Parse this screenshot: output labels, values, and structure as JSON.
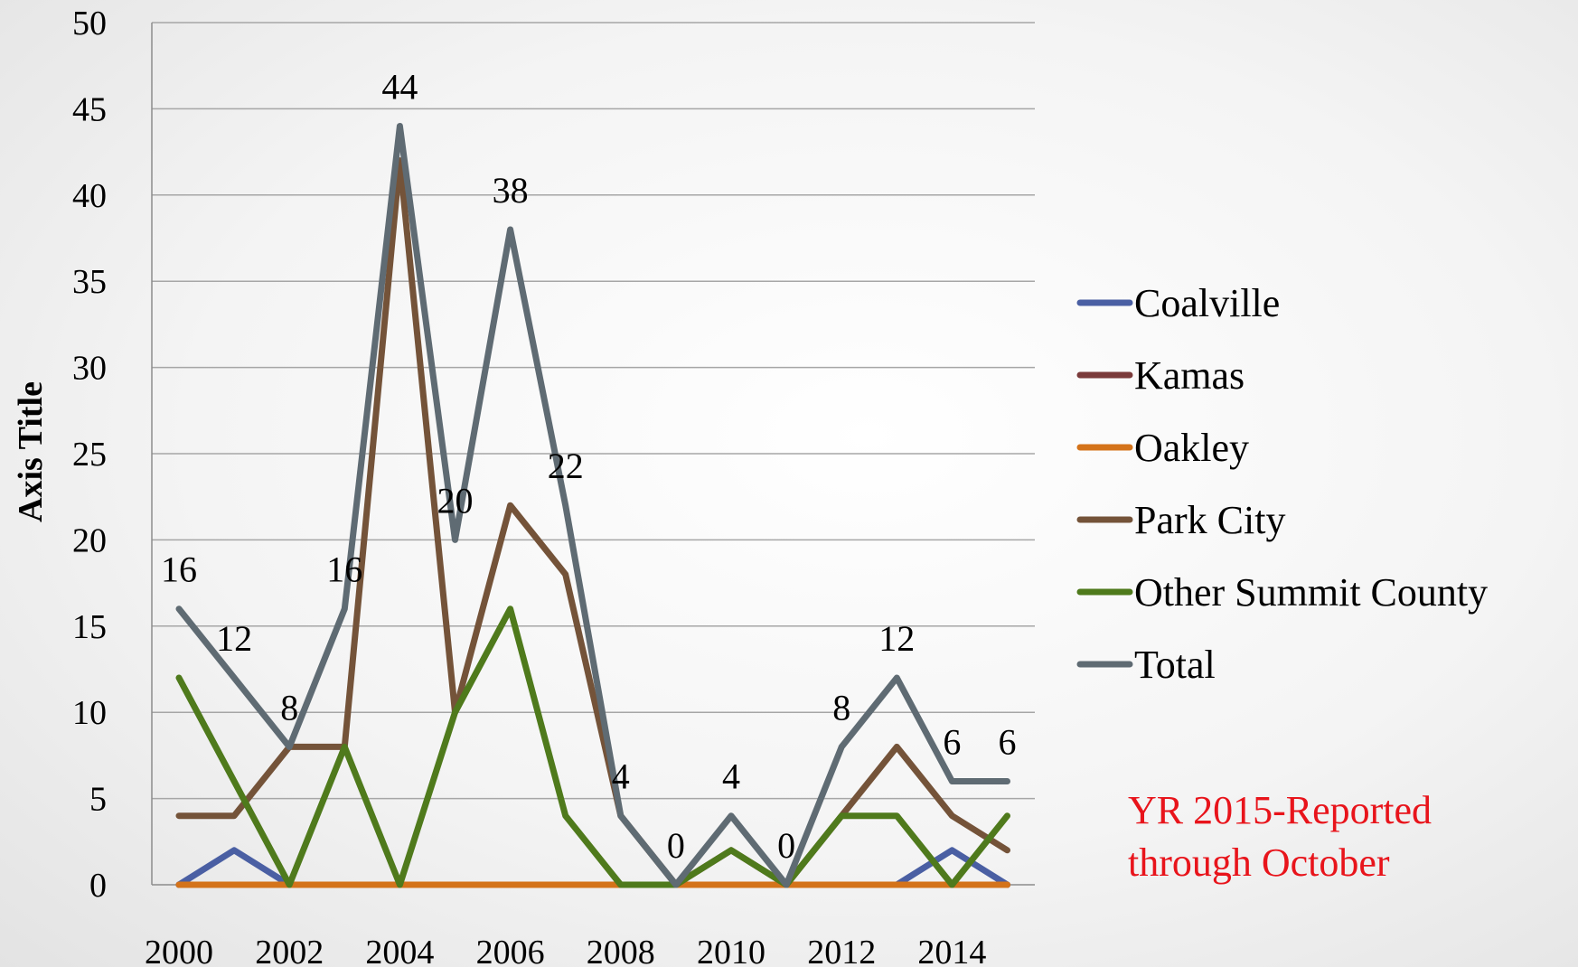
{
  "chart_data": {
    "type": "line",
    "title": "",
    "xlabel": "",
    "ylabel": "Axis Title",
    "ylim": [
      0,
      50
    ],
    "y_ticks": [
      0,
      5,
      10,
      15,
      20,
      25,
      30,
      35,
      40,
      45,
      50
    ],
    "x": [
      2000,
      2001,
      2002,
      2003,
      2004,
      2005,
      2006,
      2007,
      2008,
      2009,
      2010,
      2011,
      2012,
      2013,
      2014,
      2015
    ],
    "x_tick_labels": [
      "2000",
      "2002",
      "2004",
      "2006",
      "2008",
      "2010",
      "2012",
      "2014"
    ],
    "grid": "horizontal",
    "legend_position": "right",
    "series": [
      {
        "name": "Coalville",
        "color": "#4a5fa3",
        "values": [
          0,
          2,
          0,
          0,
          0,
          0,
          0,
          0,
          0,
          0,
          0,
          0,
          0,
          0,
          2,
          0
        ]
      },
      {
        "name": "Kamas",
        "color": "#7b3b3b",
        "values": [
          0,
          0,
          0,
          0,
          0,
          0,
          0,
          0,
          0,
          0,
          0,
          0,
          0,
          0,
          0,
          0
        ]
      },
      {
        "name": "Oakley",
        "color": "#d4731a",
        "values": [
          0,
          0,
          0,
          0,
          0,
          0,
          0,
          0,
          0,
          0,
          0,
          0,
          0,
          0,
          0,
          0
        ]
      },
      {
        "name": "Park City",
        "color": "#745339",
        "values": [
          4,
          4,
          8,
          8,
          42,
          10,
          22,
          18,
          4,
          0,
          2,
          0,
          4,
          8,
          4,
          2
        ]
      },
      {
        "name": "Other Summit County",
        "color": "#4f7a1c",
        "values": [
          12,
          6,
          0,
          8,
          0,
          10,
          16,
          4,
          0,
          0,
          2,
          0,
          4,
          4,
          0,
          4
        ]
      },
      {
        "name": "Total",
        "color": "#5f6b73",
        "values": [
          16,
          12,
          8,
          16,
          44,
          20,
          38,
          22,
          4,
          0,
          4,
          0,
          8,
          12,
          6,
          6
        ]
      }
    ],
    "data_labels": {
      "series": "Total",
      "points": [
        {
          "x": 2000,
          "text": "16"
        },
        {
          "x": 2001,
          "text": "12"
        },
        {
          "x": 2002,
          "text": "8"
        },
        {
          "x": 2003,
          "text": "16"
        },
        {
          "x": 2004,
          "text": "44"
        },
        {
          "x": 2005,
          "text": "20"
        },
        {
          "x": 2006,
          "text": "38"
        },
        {
          "x": 2007,
          "text": "22"
        },
        {
          "x": 2008,
          "text": "4"
        },
        {
          "x": 2009,
          "text": "0"
        },
        {
          "x": 2010,
          "text": "4"
        },
        {
          "x": 2011,
          "text": "0"
        },
        {
          "x": 2012,
          "text": "8"
        },
        {
          "x": 2013,
          "text": "12"
        },
        {
          "x": 2014,
          "text": "6"
        },
        {
          "x": 2015,
          "text": "6"
        }
      ]
    }
  },
  "note": {
    "line1": "YR 2015-Reported",
    "line2": "through October",
    "color": "#e8141b"
  }
}
